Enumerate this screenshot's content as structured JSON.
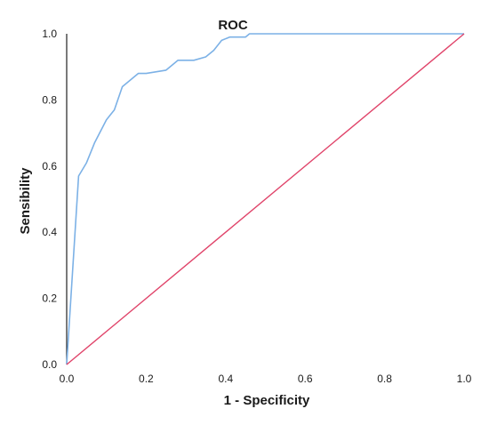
{
  "chart_data": {
    "type": "line",
    "title": "ROC",
    "xlabel": "1 - Specificity",
    "ylabel": "Sensibility",
    "xlim": [
      0,
      1
    ],
    "ylim": [
      0,
      1
    ],
    "x_ticks": [
      "0.0",
      "0.2",
      "0.4",
      "0.6",
      "0.8",
      "1.0"
    ],
    "y_ticks": [
      "0.0",
      "0.2",
      "0.4",
      "0.6",
      "0.8",
      "1.0"
    ],
    "grid": false,
    "legend": "none",
    "series": [
      {
        "color": "#7cb1e6",
        "x": [
          0.0,
          0.03,
          0.05,
          0.07,
          0.1,
          0.12,
          0.14,
          0.18,
          0.2,
          0.25,
          0.28,
          0.32,
          0.35,
          0.37,
          0.39,
          0.41,
          0.43,
          0.45,
          0.46,
          0.48,
          0.5,
          0.6,
          0.8,
          1.0
        ],
        "y": [
          0.0,
          0.57,
          0.61,
          0.67,
          0.74,
          0.77,
          0.84,
          0.88,
          0.88,
          0.89,
          0.92,
          0.92,
          0.93,
          0.95,
          0.98,
          0.99,
          0.99,
          0.99,
          1.0,
          1.0,
          1.0,
          1.0,
          1.0,
          1.0
        ]
      },
      {
        "color": "#e0446a",
        "x": [
          0.0,
          1.0
        ],
        "y": [
          0.0,
          1.0
        ]
      }
    ]
  }
}
